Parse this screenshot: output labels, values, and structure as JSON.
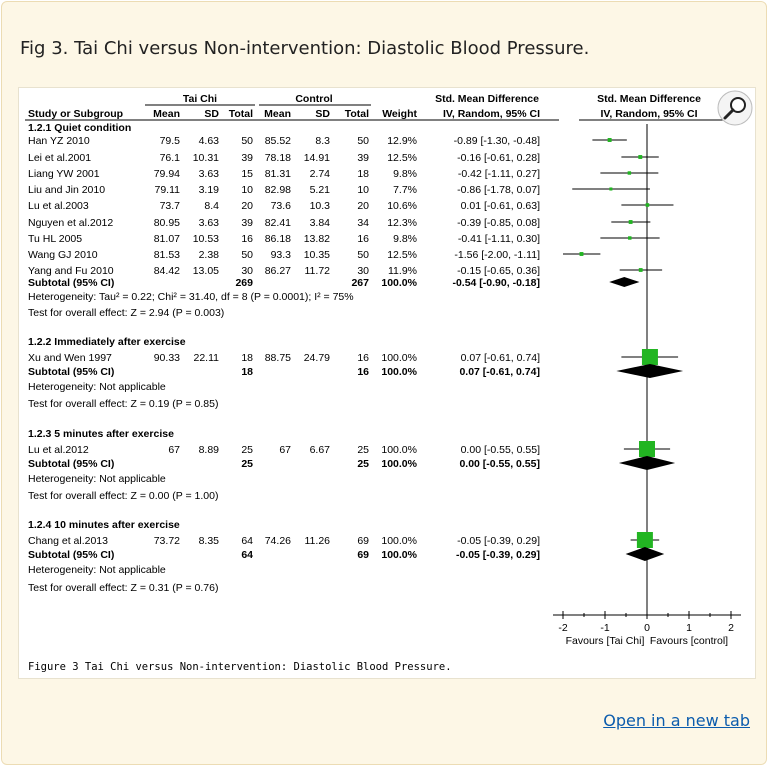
{
  "caption": {
    "title": "Fig 3. Tai Chi versus Non-intervention: Diastolic Blood Pressure.",
    "open_link": "Open in a new tab"
  },
  "colors": {
    "study_marker": "#22b522",
    "summary_diamond": "#000000",
    "link": "#0b5cad",
    "panel_bg": "#fdf7e6"
  },
  "icons": {
    "magnifier": "magnifier-icon"
  },
  "headers": {
    "group_taichi": "Tai Chi",
    "group_control": "Control",
    "smd_col": "Std. Mean Difference",
    "smd_plot": "Std. Mean Difference",
    "study": "Study or Subgroup",
    "mean_t": "Mean",
    "sd_t": "SD",
    "total_t": "Total",
    "mean_c": "Mean",
    "sd_c": "SD",
    "total_c": "Total",
    "weight": "Weight",
    "method_col": "IV, Random, 95% CI",
    "method_plot": "IV, Random, 95% CI"
  },
  "subgroups": [
    {
      "title": "1.2.1 Quiet condition",
      "studies": [
        {
          "name": "Han YZ 2010",
          "mean_t": "79.5",
          "sd_t": "4.63",
          "total_t": "50",
          "mean_c": "85.52",
          "sd_c": "8.3",
          "total_c": "50",
          "weight": "12.9%",
          "ci": "-0.89 [-1.30, -0.48]"
        },
        {
          "name": "Lei et al.2001",
          "mean_t": "76.1",
          "sd_t": "10.31",
          "total_t": "39",
          "mean_c": "78.18",
          "sd_c": "14.91",
          "total_c": "39",
          "weight": "12.5%",
          "ci": "-0.16 [-0.61, 0.28]"
        },
        {
          "name": "Liang YW 2001",
          "mean_t": "79.94",
          "sd_t": "3.63",
          "total_t": "15",
          "mean_c": "81.31",
          "sd_c": "2.74",
          "total_c": "18",
          "weight": "9.8%",
          "ci": "-0.42 [-1.11, 0.27]"
        },
        {
          "name": "Liu and Jin 2010",
          "mean_t": "79.11",
          "sd_t": "3.19",
          "total_t": "10",
          "mean_c": "82.98",
          "sd_c": "5.21",
          "total_c": "10",
          "weight": "7.7%",
          "ci": "-0.86 [-1.78, 0.07]"
        },
        {
          "name": "Lu et al.2003",
          "mean_t": "73.7",
          "sd_t": "8.4",
          "total_t": "20",
          "mean_c": "73.6",
          "sd_c": "10.3",
          "total_c": "20",
          "weight": "10.6%",
          "ci": "0.01 [-0.61, 0.63]"
        },
        {
          "name": "Nguyen et al.2012",
          "mean_t": "80.95",
          "sd_t": "3.63",
          "total_t": "39",
          "mean_c": "82.41",
          "sd_c": "3.84",
          "total_c": "34",
          "weight": "12.3%",
          "ci": "-0.39 [-0.85, 0.08]"
        },
        {
          "name": "Tu HL 2005",
          "mean_t": "81.07",
          "sd_t": "10.53",
          "total_t": "16",
          "mean_c": "86.18",
          "sd_c": "13.82",
          "total_c": "16",
          "weight": "9.8%",
          "ci": "-0.41 [-1.11, 0.30]"
        },
        {
          "name": "Wang GJ 2010",
          "mean_t": "81.53",
          "sd_t": "2.38",
          "total_t": "50",
          "mean_c": "93.3",
          "sd_c": "10.35",
          "total_c": "50",
          "weight": "12.5%",
          "ci": "-1.56 [-2.00, -1.11]"
        },
        {
          "name": "Yang and Fu 2010",
          "mean_t": "84.42",
          "sd_t": "13.05",
          "total_t": "30",
          "mean_c": "86.27",
          "sd_c": "11.72",
          "total_c": "30",
          "weight": "11.9%",
          "ci": "-0.15 [-0.65, 0.36]"
        }
      ],
      "subtotal": {
        "label": "Subtotal (95% CI)",
        "total_t": "269",
        "total_c": "267",
        "weight": "100.0%",
        "ci": "-0.54 [-0.90, -0.18]"
      },
      "heterogeneity": "Heterogeneity: Tau² = 0.22; Chi² = 31.40, df = 8 (P = 0.0001); I² = 75%",
      "overall": "Test for overall effect: Z = 2.94 (P = 0.003)"
    },
    {
      "title": "1.2.2 Immediately after exercise",
      "studies": [
        {
          "name": "Xu and Wen 1997",
          "mean_t": "90.33",
          "sd_t": "22.11",
          "total_t": "18",
          "mean_c": "88.75",
          "sd_c": "24.79",
          "total_c": "16",
          "weight": "100.0%",
          "ci": "0.07 [-0.61, 0.74]"
        }
      ],
      "subtotal": {
        "label": "Subtotal (95% CI)",
        "total_t": "18",
        "total_c": "16",
        "weight": "100.0%",
        "ci": "0.07 [-0.61, 0.74]"
      },
      "heterogeneity": "Heterogeneity: Not applicable",
      "overall": "Test for overall effect: Z = 0.19 (P = 0.85)"
    },
    {
      "title": "1.2.3 5 minutes after exercise",
      "studies": [
        {
          "name": "Lu et al.2012",
          "mean_t": "67",
          "sd_t": "8.89",
          "total_t": "25",
          "mean_c": "67",
          "sd_c": "6.67",
          "total_c": "25",
          "weight": "100.0%",
          "ci": "0.00 [-0.55, 0.55]"
        }
      ],
      "subtotal": {
        "label": "Subtotal (95% CI)",
        "total_t": "25",
        "total_c": "25",
        "weight": "100.0%",
        "ci": "0.00 [-0.55, 0.55]"
      },
      "heterogeneity": "Heterogeneity: Not applicable",
      "overall": "Test for overall effect: Z = 0.00 (P = 1.00)"
    },
    {
      "title": "1.2.4 10 minutes after exercise",
      "studies": [
        {
          "name": "Chang et al.2013",
          "mean_t": "73.72",
          "sd_t": "8.35",
          "total_t": "64",
          "mean_c": "74.26",
          "sd_c": "11.26",
          "total_c": "69",
          "weight": "100.0%",
          "ci": "-0.05 [-0.39, 0.29]"
        }
      ],
      "subtotal": {
        "label": "Subtotal (95% CI)",
        "total_t": "64",
        "total_c": "69",
        "weight": "100.0%",
        "ci": "-0.05 [-0.39, 0.29]"
      },
      "heterogeneity": "Heterogeneity: Not applicable",
      "overall": "Test for overall effect: Z = 0.31 (P = 0.76)"
    }
  ],
  "axis": {
    "ticks": [
      "-2",
      "-1",
      "0",
      "1",
      "2"
    ],
    "favours_left": "Favours [Tai Chi]",
    "favours_right": "Favours [control]"
  },
  "footer_caption": "Figure 3 Tai Chi versus Non-intervention: Diastolic Blood Pressure.",
  "chart_data": {
    "type": "forest",
    "xlim": [
      -2,
      2
    ],
    "x_ticks": [
      -2,
      -1,
      0,
      1,
      2
    ],
    "reference_line": 0,
    "studies": [
      {
        "subgroup": "1.2.1 Quiet condition",
        "name": "Han YZ 2010",
        "smd": -0.89,
        "lo": -1.3,
        "hi": -0.48,
        "weight": 12.9
      },
      {
        "subgroup": "1.2.1 Quiet condition",
        "name": "Lei et al.2001",
        "smd": -0.16,
        "lo": -0.61,
        "hi": 0.28,
        "weight": 12.5
      },
      {
        "subgroup": "1.2.1 Quiet condition",
        "name": "Liang YW 2001",
        "smd": -0.42,
        "lo": -1.11,
        "hi": 0.27,
        "weight": 9.8
      },
      {
        "subgroup": "1.2.1 Quiet condition",
        "name": "Liu and Jin 2010",
        "smd": -0.86,
        "lo": -1.78,
        "hi": 0.07,
        "weight": 7.7
      },
      {
        "subgroup": "1.2.1 Quiet condition",
        "name": "Lu et al.2003",
        "smd": 0.01,
        "lo": -0.61,
        "hi": 0.63,
        "weight": 10.6
      },
      {
        "subgroup": "1.2.1 Quiet condition",
        "name": "Nguyen et al.2012",
        "smd": -0.39,
        "lo": -0.85,
        "hi": 0.08,
        "weight": 12.3
      },
      {
        "subgroup": "1.2.1 Quiet condition",
        "name": "Tu HL 2005",
        "smd": -0.41,
        "lo": -1.11,
        "hi": 0.3,
        "weight": 9.8
      },
      {
        "subgroup": "1.2.1 Quiet condition",
        "name": "Wang GJ 2010",
        "smd": -1.56,
        "lo": -2.0,
        "hi": -1.11,
        "weight": 12.5
      },
      {
        "subgroup": "1.2.1 Quiet condition",
        "name": "Yang and Fu 2010",
        "smd": -0.15,
        "lo": -0.65,
        "hi": 0.36,
        "weight": 11.9
      },
      {
        "subgroup": "1.2.2 Immediately after exercise",
        "name": "Xu and Wen 1997",
        "smd": 0.07,
        "lo": -0.61,
        "hi": 0.74,
        "weight": 100.0
      },
      {
        "subgroup": "1.2.3 5 minutes after exercise",
        "name": "Lu et al.2012",
        "smd": 0.0,
        "lo": -0.55,
        "hi": 0.55,
        "weight": 100.0
      },
      {
        "subgroup": "1.2.4 10 minutes after exercise",
        "name": "Chang et al.2013",
        "smd": -0.05,
        "lo": -0.39,
        "hi": 0.29,
        "weight": 100.0
      }
    ],
    "subtotals": [
      {
        "subgroup": "1.2.1 Quiet condition",
        "smd": -0.54,
        "lo": -0.9,
        "hi": -0.18
      },
      {
        "subgroup": "1.2.2 Immediately after exercise",
        "smd": 0.07,
        "lo": -0.61,
        "hi": 0.74
      },
      {
        "subgroup": "1.2.3 5 minutes after exercise",
        "smd": 0.0,
        "lo": -0.55,
        "hi": 0.55
      },
      {
        "subgroup": "1.2.4 10 minutes after exercise",
        "smd": -0.05,
        "lo": -0.39,
        "hi": 0.29
      }
    ]
  }
}
